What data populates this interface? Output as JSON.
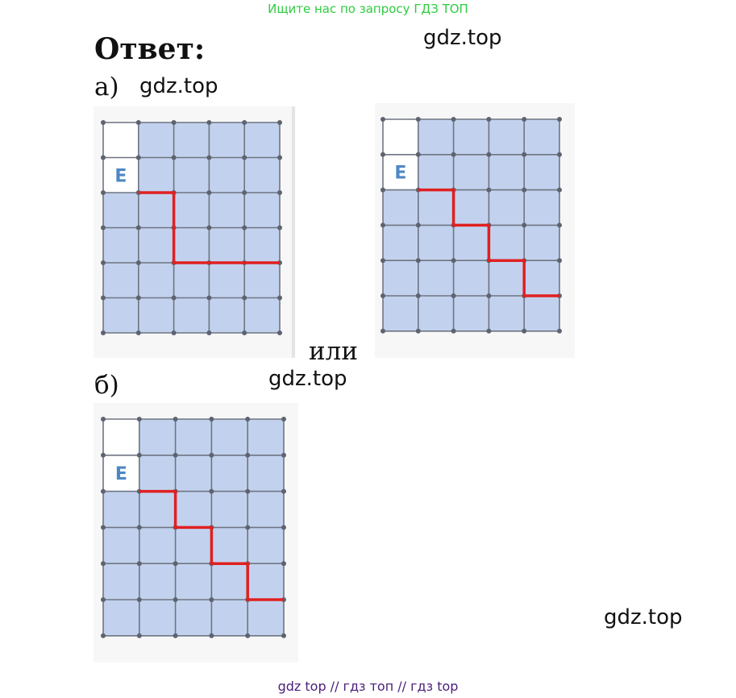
{
  "header": {
    "banner_text": "Ищите нас по запросу ГДЗ ТОП"
  },
  "answer_title": "Ответ:",
  "labels": {
    "part_a": "а)",
    "or_word": "или",
    "part_b": "б)"
  },
  "watermarks": [
    "gdz.top",
    "gdz.top",
    "gdz.top",
    "gdz.top"
  ],
  "grid_cell_letter": "Е",
  "footer": {
    "text": "gdz top  //  гдз топ  //  гдз top"
  },
  "colors": {
    "cell_fill": "#c2d2ee",
    "grid_line": "#6f7482",
    "path": "#e02020",
    "letter": "#4e88c4",
    "banner": "#2ecc40",
    "footer": "#4b1f7a"
  }
}
